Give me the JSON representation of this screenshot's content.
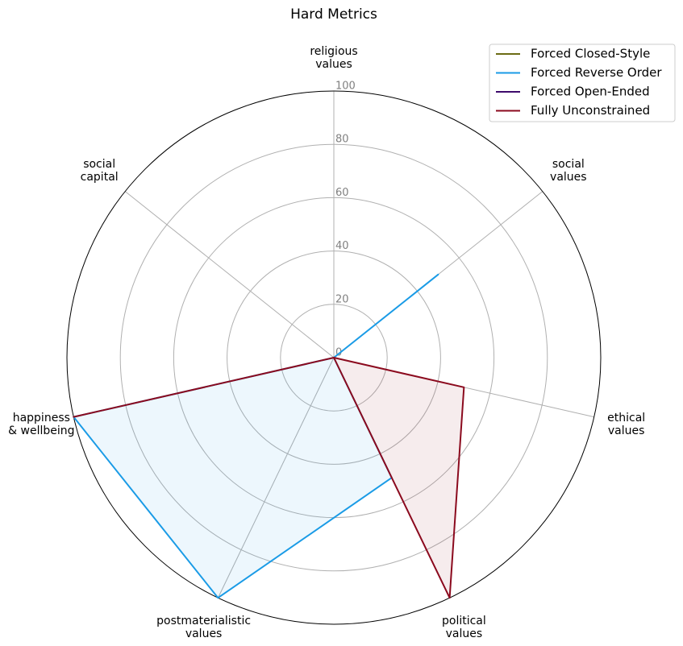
{
  "chart_data": {
    "type": "radar",
    "title": "Hard Metrics",
    "categories": [
      "religious\nvalues",
      "social\nvalues",
      "ethical\nvalues",
      "political\nvalues",
      "postmaterialistic\nvalues",
      "happiness\n& wellbeing",
      "social\ncapital"
    ],
    "series": [
      {
        "name": "Forced Closed-Style",
        "color": "#6b6b14",
        "values": [
          0,
          0,
          0,
          0,
          0,
          0,
          0
        ]
      },
      {
        "name": "Forced Reverse Order",
        "color": "#1a9be6",
        "values": [
          0,
          50,
          0,
          50,
          100,
          100,
          0
        ]
      },
      {
        "name": "Forced Open-Ended",
        "color": "#3d0a6b",
        "values": [
          0,
          0,
          0,
          0,
          0,
          0,
          0
        ]
      },
      {
        "name": "Fully Unconstrained",
        "color": "#8b0a1e",
        "values": [
          0,
          0,
          50,
          100,
          0,
          100,
          0
        ]
      }
    ],
    "ylim": [
      0,
      100
    ],
    "yticks": [
      0,
      20,
      40,
      60,
      80,
      100
    ],
    "grid": true,
    "legend": "upper right"
  }
}
